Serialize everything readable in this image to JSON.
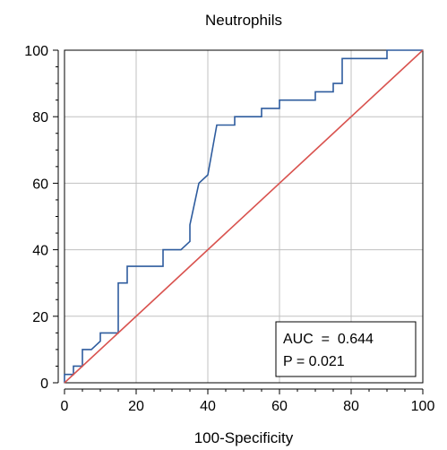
{
  "chart_data": {
    "type": "line",
    "title": "Neutrophils",
    "xlabel": "100-Specificity",
    "ylabel": "",
    "xlim": [
      0,
      100
    ],
    "ylim": [
      0,
      100
    ],
    "x_ticks": [
      0,
      20,
      40,
      60,
      80,
      100
    ],
    "y_ticks": [
      0,
      20,
      40,
      60,
      80,
      100
    ],
    "grid": true,
    "series": [
      {
        "color": "#2e5c9e",
        "x": [
          0,
          0,
          2.5,
          2.5,
          5,
          5,
          7.5,
          10,
          10,
          15,
          15,
          17.5,
          17.5,
          27.5,
          27.5,
          32.5,
          35,
          35,
          37.5,
          40,
          40,
          42.5,
          42.5,
          47.5,
          47.5,
          55,
          55,
          60,
          60,
          70,
          70,
          75,
          75,
          77.5,
          77.5,
          90,
          90,
          100
        ],
        "y": [
          0,
          2.5,
          2.5,
          5,
          5,
          10,
          10,
          12.5,
          15,
          15,
          30,
          30,
          35,
          35,
          40,
          40,
          42.5,
          47.5,
          60,
          62.5,
          62.5,
          77.5,
          77.5,
          77.5,
          80,
          80,
          82.5,
          82.5,
          85,
          85,
          87.5,
          87.5,
          90,
          90,
          97.5,
          97.5,
          100,
          100
        ]
      },
      {
        "color": "#d9534f",
        "x": [
          0,
          100
        ],
        "y": [
          0,
          100
        ]
      }
    ],
    "annotations": [
      "AUC  =  0.644",
      "P = 0.021"
    ]
  }
}
